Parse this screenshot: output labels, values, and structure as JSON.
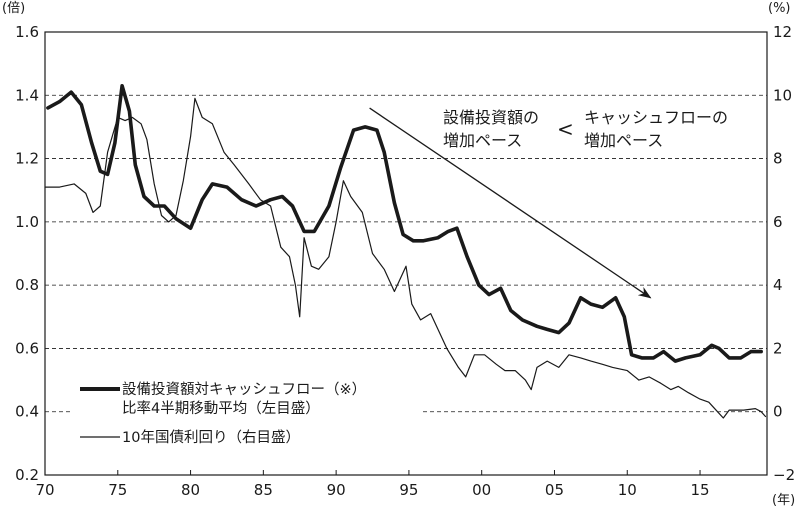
{
  "chart_data": {
    "type": "line",
    "x_label_unit": "(年)",
    "y_left_unit": "(倍)",
    "y_right_unit": "(%)",
    "x_ticks": [
      "70",
      "75",
      "80",
      "85",
      "90",
      "95",
      "00",
      "05",
      "10",
      "15"
    ],
    "x_range": [
      1970,
      2019.6
    ],
    "y_left_ticks": [
      "0.2",
      "0.4",
      "0.6",
      "0.8",
      "1.0",
      "1.2",
      "1.4",
      "1.6"
    ],
    "y_left_range": [
      0.2,
      1.6
    ],
    "y_right_ticks": [
      "−2",
      "0",
      "2",
      "4",
      "6",
      "8",
      "10",
      "12"
    ],
    "y_right_range": [
      -2,
      12
    ],
    "grid": "horizontal dashed",
    "annotation": {
      "line1_left": "設備投資額の",
      "line2_left": "増加ペース",
      "symbol": "<",
      "line1_right": "キャッシュフローの",
      "line2_right": "増加ペース"
    },
    "arrow_trend": {
      "from": [
        1992.3,
        1.29
      ],
      "to": [
        2011.6,
        0.76
      ]
    },
    "series": [
      {
        "name": "設備投資額対キャッシュフロー（※）比率4半期移動平均（左目盛）",
        "legend_line1": "設備投資額対キャッシュフロー（※）",
        "legend_line2": "比率4半期移動平均（左目盛）",
        "axis": "left",
        "style": "thick",
        "points": [
          [
            1970.2,
            1.36
          ],
          [
            1971.0,
            1.38
          ],
          [
            1971.8,
            1.41
          ],
          [
            1972.5,
            1.37
          ],
          [
            1973.2,
            1.25
          ],
          [
            1973.8,
            1.16
          ],
          [
            1974.3,
            1.15
          ],
          [
            1974.8,
            1.25
          ],
          [
            1975.3,
            1.43
          ],
          [
            1975.8,
            1.35
          ],
          [
            1976.2,
            1.18
          ],
          [
            1976.8,
            1.08
          ],
          [
            1977.5,
            1.05
          ],
          [
            1978.2,
            1.05
          ],
          [
            1979.0,
            1.01
          ],
          [
            1980.0,
            0.98
          ],
          [
            1980.8,
            1.07
          ],
          [
            1981.5,
            1.12
          ],
          [
            1982.5,
            1.11
          ],
          [
            1983.5,
            1.07
          ],
          [
            1984.5,
            1.05
          ],
          [
            1985.5,
            1.07
          ],
          [
            1986.3,
            1.08
          ],
          [
            1987.0,
            1.05
          ],
          [
            1987.8,
            0.97
          ],
          [
            1988.5,
            0.97
          ],
          [
            1989.5,
            1.05
          ],
          [
            1990.3,
            1.17
          ],
          [
            1991.2,
            1.29
          ],
          [
            1992.0,
            1.3
          ],
          [
            1992.8,
            1.29
          ],
          [
            1993.3,
            1.22
          ],
          [
            1994.0,
            1.06
          ],
          [
            1994.6,
            0.96
          ],
          [
            1995.3,
            0.94
          ],
          [
            1996.0,
            0.94
          ],
          [
            1997.0,
            0.95
          ],
          [
            1997.7,
            0.97
          ],
          [
            1998.3,
            0.98
          ],
          [
            1999.0,
            0.89
          ],
          [
            1999.8,
            0.8
          ],
          [
            2000.5,
            0.77
          ],
          [
            2001.3,
            0.79
          ],
          [
            2002.0,
            0.72
          ],
          [
            2002.8,
            0.69
          ],
          [
            2003.8,
            0.67
          ],
          [
            2004.5,
            0.66
          ],
          [
            2005.3,
            0.65
          ],
          [
            2006.0,
            0.68
          ],
          [
            2006.8,
            0.76
          ],
          [
            2007.5,
            0.74
          ],
          [
            2008.3,
            0.73
          ],
          [
            2009.2,
            0.76
          ],
          [
            2009.8,
            0.7
          ],
          [
            2010.3,
            0.58
          ],
          [
            2011.0,
            0.57
          ],
          [
            2011.8,
            0.57
          ],
          [
            2012.5,
            0.59
          ],
          [
            2013.3,
            0.56
          ],
          [
            2014.0,
            0.57
          ],
          [
            2015.0,
            0.58
          ],
          [
            2015.8,
            0.61
          ],
          [
            2016.3,
            0.6
          ],
          [
            2017.0,
            0.57
          ],
          [
            2017.8,
            0.57
          ],
          [
            2018.5,
            0.59
          ],
          [
            2019.2,
            0.59
          ]
        ]
      },
      {
        "name": "10年国債利回り（右目盛）",
        "legend_line1": "10年国債利回り（右目盛）",
        "axis": "right",
        "style": "thin",
        "points": [
          [
            1970.0,
            7.1
          ],
          [
            1971.0,
            7.1
          ],
          [
            1972.0,
            7.2
          ],
          [
            1972.8,
            6.9
          ],
          [
            1973.3,
            6.3
          ],
          [
            1973.8,
            6.5
          ],
          [
            1974.3,
            8.2
          ],
          [
            1975.0,
            9.3
          ],
          [
            1975.5,
            9.2
          ],
          [
            1976.0,
            9.3
          ],
          [
            1976.6,
            9.1
          ],
          [
            1977.0,
            8.6
          ],
          [
            1977.5,
            7.2
          ],
          [
            1978.0,
            6.2
          ],
          [
            1978.5,
            6.0
          ],
          [
            1979.0,
            6.2
          ],
          [
            1979.5,
            7.3
          ],
          [
            1980.0,
            8.7
          ],
          [
            1980.3,
            9.9
          ],
          [
            1980.8,
            9.3
          ],
          [
            1981.5,
            9.1
          ],
          [
            1982.3,
            8.2
          ],
          [
            1983.0,
            7.8
          ],
          [
            1984.0,
            7.2
          ],
          [
            1984.8,
            6.7
          ],
          [
            1985.5,
            6.5
          ],
          [
            1986.2,
            5.2
          ],
          [
            1986.8,
            4.9
          ],
          [
            1987.2,
            4.0
          ],
          [
            1987.5,
            3.0
          ],
          [
            1987.8,
            5.5
          ],
          [
            1988.3,
            4.6
          ],
          [
            1988.8,
            4.5
          ],
          [
            1989.5,
            4.9
          ],
          [
            1990.0,
            6.0
          ],
          [
            1990.5,
            7.3
          ],
          [
            1991.0,
            6.8
          ],
          [
            1991.8,
            6.3
          ],
          [
            1992.5,
            5.0
          ],
          [
            1993.3,
            4.5
          ],
          [
            1994.0,
            3.8
          ],
          [
            1994.8,
            4.6
          ],
          [
            1995.2,
            3.4
          ],
          [
            1995.8,
            2.9
          ],
          [
            1996.5,
            3.1
          ],
          [
            1997.0,
            2.6
          ],
          [
            1997.6,
            2.0
          ],
          [
            1998.4,
            1.4
          ],
          [
            1998.9,
            1.1
          ],
          [
            1999.5,
            1.8
          ],
          [
            2000.2,
            1.8
          ],
          [
            2001.0,
            1.5
          ],
          [
            2001.6,
            1.3
          ],
          [
            2002.3,
            1.3
          ],
          [
            2003.0,
            1.0
          ],
          [
            2003.4,
            0.7
          ],
          [
            2003.8,
            1.4
          ],
          [
            2004.5,
            1.6
          ],
          [
            2005.3,
            1.4
          ],
          [
            2006.0,
            1.8
          ],
          [
            2006.8,
            1.7
          ],
          [
            2007.5,
            1.6
          ],
          [
            2008.3,
            1.5
          ],
          [
            2009.0,
            1.4
          ],
          [
            2010.0,
            1.3
          ],
          [
            2010.8,
            1.0
          ],
          [
            2011.5,
            1.1
          ],
          [
            2012.3,
            0.9
          ],
          [
            2013.0,
            0.7
          ],
          [
            2013.5,
            0.8
          ],
          [
            2014.2,
            0.6
          ],
          [
            2015.0,
            0.4
          ],
          [
            2015.6,
            0.3
          ],
          [
            2016.2,
            0.0
          ],
          [
            2016.6,
            -0.2
          ],
          [
            2017.0,
            0.05
          ],
          [
            2018.0,
            0.05
          ],
          [
            2018.8,
            0.1
          ],
          [
            2019.2,
            0.0
          ],
          [
            2019.5,
            -0.15
          ]
        ]
      }
    ]
  }
}
